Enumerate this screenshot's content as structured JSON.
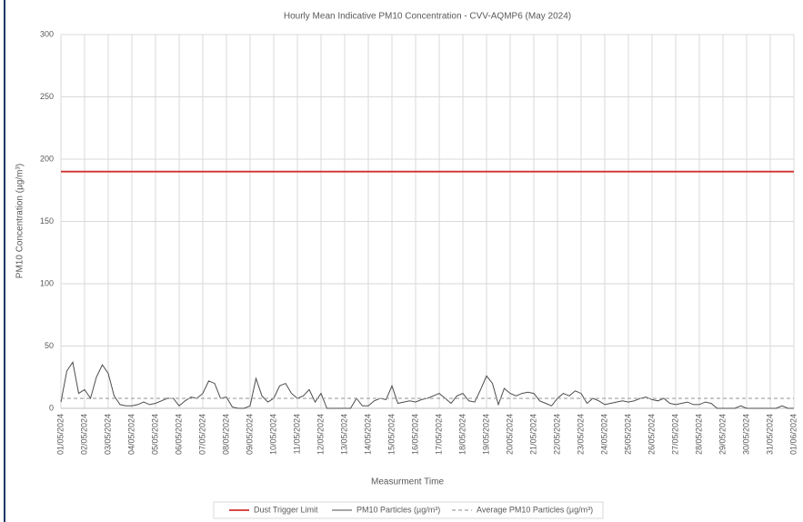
{
  "chart_data": {
    "type": "line",
    "title": "Hourly Mean Indicative PM10 Concentration - CVV-AQMP6 (May 2024)",
    "x_label": "Measurment Time",
    "y_label": "PM10 Concentration (µg/m³)",
    "xlim": [
      0,
      31
    ],
    "ylim": [
      0,
      300
    ],
    "yticks": [
      0,
      50,
      100,
      150,
      200,
      250,
      300
    ],
    "xticks": [
      {
        "value": 0,
        "label": "01/05/2024"
      },
      {
        "value": 1,
        "label": "02/05/2024"
      },
      {
        "value": 2,
        "label": "03/05/2024"
      },
      {
        "value": 3,
        "label": "04/05/2024"
      },
      {
        "value": 4,
        "label": "05/05/2024"
      },
      {
        "value": 5,
        "label": "06/05/2024"
      },
      {
        "value": 6,
        "label": "07/05/2024"
      },
      {
        "value": 7,
        "label": "08/05/2024"
      },
      {
        "value": 8,
        "label": "09/05/2024"
      },
      {
        "value": 9,
        "label": "10/05/2024"
      },
      {
        "value": 10,
        "label": "11/05/2024"
      },
      {
        "value": 11,
        "label": "12/05/2024"
      },
      {
        "value": 12,
        "label": "13/05/2024"
      },
      {
        "value": 13,
        "label": "14/05/2024"
      },
      {
        "value": 14,
        "label": "15/05/2024"
      },
      {
        "value": 15,
        "label": "16/05/2024"
      },
      {
        "value": 16,
        "label": "17/05/2024"
      },
      {
        "value": 17,
        "label": "18/05/2024"
      },
      {
        "value": 18,
        "label": "19/05/2024"
      },
      {
        "value": 19,
        "label": "20/05/2024"
      },
      {
        "value": 20,
        "label": "21/05/2024"
      },
      {
        "value": 21,
        "label": "22/05/2024"
      },
      {
        "value": 22,
        "label": "23/05/2024"
      },
      {
        "value": 23,
        "label": "24/05/2024"
      },
      {
        "value": 24,
        "label": "25/05/2024"
      },
      {
        "value": 25,
        "label": "26/05/2024"
      },
      {
        "value": 26,
        "label": "27/05/2024"
      },
      {
        "value": 27,
        "label": "28/05/2024"
      },
      {
        "value": 28,
        "label": "29/05/2024"
      },
      {
        "value": 29,
        "label": "30/05/2024"
      },
      {
        "value": 30,
        "label": "31/05/2024"
      },
      {
        "value": 31,
        "label": "01/06/2024"
      }
    ],
    "grid": true,
    "reference_lines": [
      {
        "name": "Dust Trigger Limit",
        "value": 190,
        "color": "#d0312d",
        "style": "solid"
      },
      {
        "name": "Average PM10 Particles (µg/m³)",
        "value": 8,
        "color": "#a0a0a0",
        "style": "dashed"
      }
    ],
    "x": [
      0,
      0.25,
      0.5,
      0.75,
      1,
      1.25,
      1.5,
      1.75,
      2,
      2.25,
      2.5,
      2.75,
      3,
      3.25,
      3.5,
      3.75,
      4,
      4.25,
      4.5,
      4.75,
      5,
      5.25,
      5.5,
      5.75,
      6,
      6.25,
      6.5,
      6.75,
      7,
      7.25,
      7.5,
      7.75,
      8,
      8.25,
      8.5,
      8.75,
      9,
      9.25,
      9.5,
      9.75,
      10,
      10.25,
      10.5,
      10.75,
      11,
      11.25,
      11.5,
      11.75,
      12,
      12.25,
      12.5,
      12.75,
      13,
      13.25,
      13.5,
      13.75,
      14,
      14.25,
      14.5,
      14.75,
      15,
      15.25,
      15.5,
      15.75,
      16,
      16.25,
      16.5,
      16.75,
      17,
      17.25,
      17.5,
      17.75,
      18,
      18.25,
      18.5,
      18.75,
      19,
      19.25,
      19.5,
      19.75,
      20,
      20.25,
      20.5,
      20.75,
      21,
      21.25,
      21.5,
      21.75,
      22,
      22.25,
      22.5,
      22.75,
      23,
      23.25,
      23.5,
      23.75,
      24,
      24.25,
      24.5,
      24.75,
      25,
      25.25,
      25.5,
      25.75,
      26,
      26.25,
      26.5,
      26.75,
      27,
      27.25,
      27.5,
      27.75,
      28,
      28.25,
      28.5,
      28.75,
      29,
      29.25,
      29.5,
      29.75,
      30,
      30.25,
      30.5,
      30.75,
      31
    ],
    "series": [
      {
        "name": "PM10 Particles (µg/m³)",
        "color": "#4d4d4d",
        "values": [
          5,
          30,
          37,
          12,
          15,
          8,
          25,
          35,
          28,
          10,
          3,
          2,
          2,
          3,
          5,
          3,
          4,
          6,
          8,
          8,
          2,
          6,
          9,
          8,
          12,
          22,
          20,
          8,
          9,
          1,
          0,
          0,
          2,
          24,
          10,
          5,
          8,
          18,
          20,
          12,
          8,
          10,
          15,
          5,
          12,
          0,
          0,
          0,
          0,
          0,
          8,
          2,
          2,
          6,
          8,
          7,
          18,
          4,
          5,
          6,
          5,
          7,
          8,
          10,
          12,
          8,
          4,
          10,
          12,
          6,
          5,
          15,
          26,
          20,
          3,
          16,
          12,
          10,
          12,
          13,
          12,
          6,
          4,
          2,
          8,
          12,
          10,
          14,
          12,
          4,
          8,
          6,
          3,
          4,
          5,
          6,
          5,
          6,
          8,
          9,
          7,
          6,
          8,
          4,
          3,
          4,
          5,
          3,
          3,
          5,
          4,
          0,
          0,
          0,
          0,
          2,
          0,
          0,
          0,
          0,
          0,
          0,
          2,
          0,
          0
        ]
      }
    ]
  }
}
